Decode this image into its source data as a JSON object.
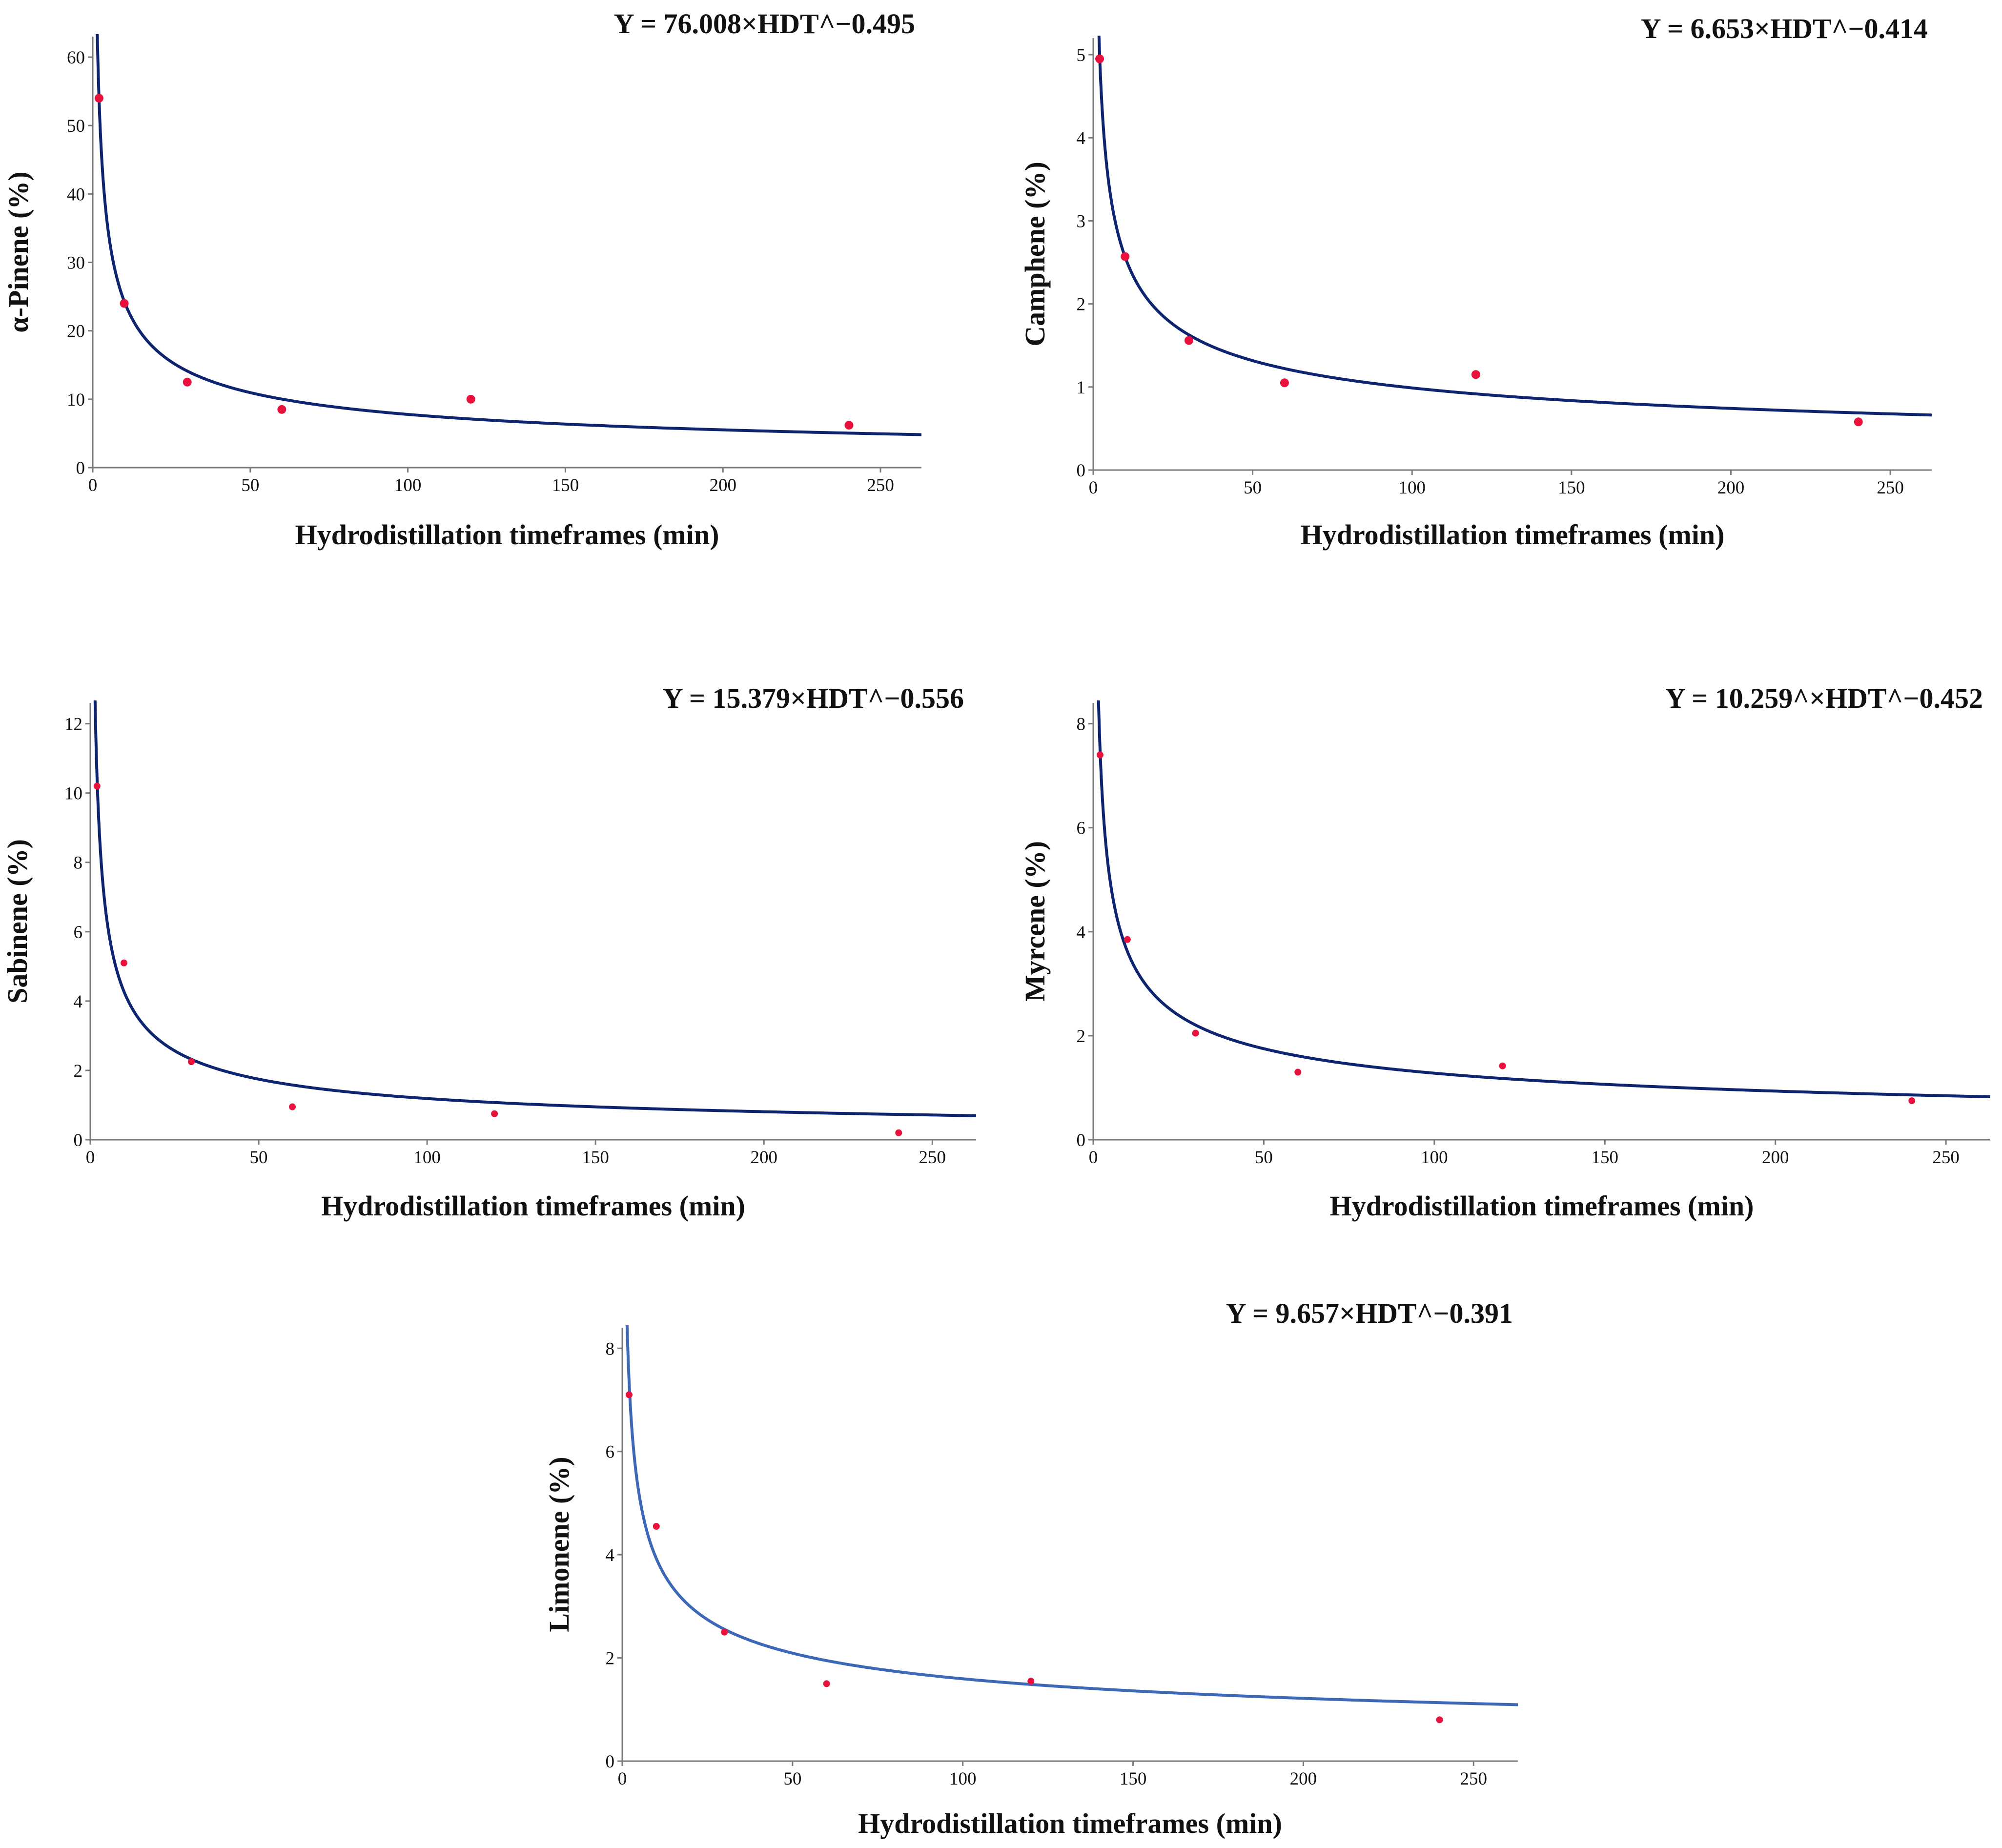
{
  "figure": {
    "panel_count": 5
  },
  "colors": {
    "point": "#e8123c",
    "curve_dark": "#0d2470",
    "curve_light": "#3d68b8",
    "axis": "#7a7a7a",
    "text": "#111111"
  },
  "chart_data": [
    {
      "type": "scatter",
      "id": "alpha-pinene",
      "title": "Y = 76.008×HDT^−0.495",
      "xlabel": "Hydrodistillation timeframes (min)",
      "ylabel": "α-Pinene (%)",
      "xlim": [
        0,
        263
      ],
      "ylim": [
        0,
        63
      ],
      "xticks": [
        0,
        50,
        100,
        150,
        200,
        250
      ],
      "yticks": [
        0,
        10,
        20,
        30,
        40,
        50,
        60
      ],
      "points": {
        "x": [
          2,
          10,
          30,
          60,
          120,
          240
        ],
        "y": [
          54.0,
          24.0,
          12.5,
          8.5,
          10.0,
          6.2
        ]
      },
      "fit": {
        "model": "power",
        "a": 76.008,
        "b": -0.495
      },
      "curve_color": "#0d2470",
      "point_radius": 9
    },
    {
      "type": "scatter",
      "id": "camphene",
      "title": "Y = 6.653×HDT^−0.414",
      "xlabel": "Hydrodistillation timeframes (min)",
      "ylabel": "Camphene (%)",
      "xlim": [
        0,
        263
      ],
      "ylim": [
        0,
        5.2
      ],
      "xticks": [
        0,
        50,
        100,
        150,
        200,
        250
      ],
      "yticks": [
        0,
        1,
        2,
        3,
        4,
        5
      ],
      "points": {
        "x": [
          2,
          10,
          30,
          60,
          120,
          240
        ],
        "y": [
          4.95,
          2.57,
          1.56,
          1.05,
          1.15,
          0.58
        ]
      },
      "fit": {
        "model": "power",
        "a": 6.653,
        "b": -0.414
      },
      "curve_color": "#0d2470",
      "point_radius": 9
    },
    {
      "type": "scatter",
      "id": "sabinene",
      "title": "Y = 15.379×HDT^−0.556",
      "xlabel": "Hydrodistillation timeframes (min)",
      "ylabel": "Sabinene (%)",
      "xlim": [
        0,
        263
      ],
      "ylim": [
        0,
        12.6
      ],
      "xticks": [
        0,
        50,
        100,
        150,
        200,
        250
      ],
      "yticks": [
        0,
        2,
        4,
        6,
        8,
        10,
        12
      ],
      "points": {
        "x": [
          2,
          10,
          30,
          60,
          120,
          240
        ],
        "y": [
          10.2,
          5.1,
          2.25,
          0.95,
          0.75,
          0.2
        ]
      },
      "fit": {
        "model": "power",
        "a": 15.379,
        "b": -0.556
      },
      "curve_color": "#0d2470",
      "point_radius": 7
    },
    {
      "type": "scatter",
      "id": "myrcene",
      "title": "Y = 10.259^×HDT^−0.452",
      "xlabel": "Hydrodistillation timeframes (min)",
      "ylabel": "Myrcene (%)",
      "xlim": [
        0,
        263
      ],
      "ylim": [
        0,
        8.4
      ],
      "xticks": [
        0,
        50,
        100,
        150,
        200,
        250
      ],
      "yticks": [
        0,
        2,
        4,
        6,
        8
      ],
      "points": {
        "x": [
          2,
          10,
          30,
          60,
          120,
          240
        ],
        "y": [
          7.4,
          3.85,
          2.05,
          1.3,
          1.42,
          0.75
        ]
      },
      "fit": {
        "model": "power",
        "a": 10.259,
        "b": -0.452
      },
      "curve_color": "#0d2470",
      "point_radius": 7
    },
    {
      "type": "scatter",
      "id": "limonene",
      "title": "Y = 9.657×HDT^−0.391",
      "xlabel": "Hydrodistillation timeframes (min)",
      "ylabel": "Limonene (%)",
      "xlim": [
        0,
        263
      ],
      "ylim": [
        0,
        8.4
      ],
      "xticks": [
        0,
        50,
        100,
        150,
        200,
        250
      ],
      "yticks": [
        0,
        2,
        4,
        6,
        8
      ],
      "points": {
        "x": [
          2,
          10,
          30,
          60,
          120,
          240
        ],
        "y": [
          7.1,
          4.55,
          2.5,
          1.5,
          1.55,
          0.8
        ]
      },
      "fit": {
        "model": "power",
        "a": 9.657,
        "b": -0.391
      },
      "curve_color": "#3d68b8",
      "point_radius": 7
    }
  ]
}
